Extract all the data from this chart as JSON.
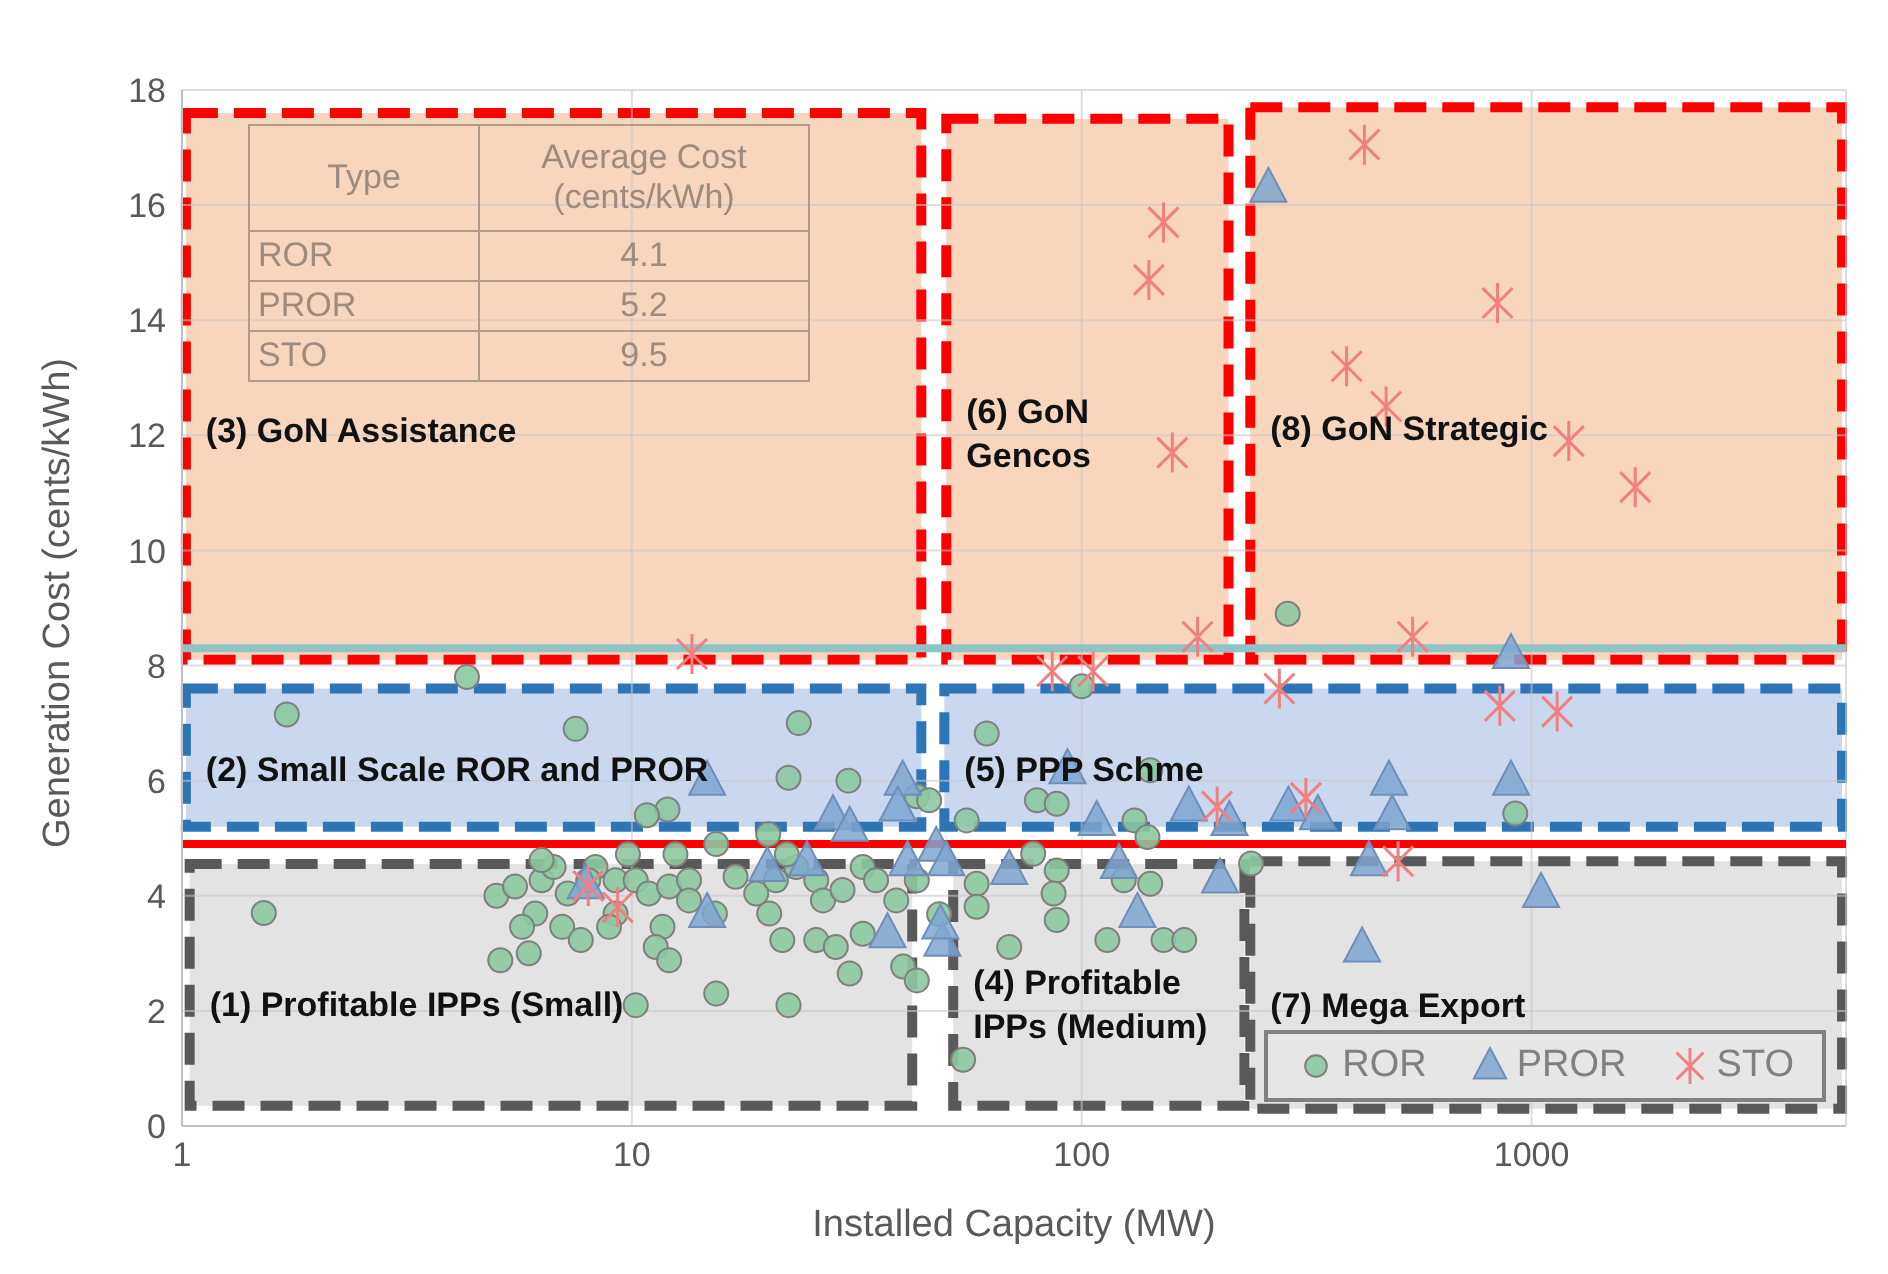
{
  "chart_data": {
    "type": "scatter",
    "xlabel": "Installed Capacity (MW)",
    "ylabel": "Generation Cost (cents/kWh)",
    "log": "x",
    "xlim": [
      1,
      5000
    ],
    "xticks": [
      1,
      10,
      100,
      1000
    ],
    "ylim": [
      0,
      18
    ],
    "yticks": [
      0,
      2,
      4,
      6,
      8,
      10,
      12,
      14,
      16,
      18
    ],
    "grid": true,
    "legend": "bottom right",
    "series": [
      {
        "name": "ROR",
        "color": "#8cc8a0",
        "marker": "circle",
        "x": [
          1.71,
          1.52,
          7.5,
          23.5,
          22.3,
          30.3,
          12.0,
          10.8,
          15.4,
          22.3,
          10.2,
          5.0,
          5.5,
          6.3,
          6.7,
          6.1,
          7.0,
          5.7,
          5.9,
          5.1,
          7.7,
          8.3,
          9.2,
          10.2,
          10.9,
          12.1,
          11.7,
          13.4,
          17.0,
          18.9,
          20.2,
          20.9,
          23.2,
          25.7,
          26.6,
          29.4,
          32.6,
          34.9,
          38.7,
          43.0,
          21.6,
          25.7,
          28.4,
          32.6,
          30.5,
          40.1,
          43.0,
          11.3,
          12.1,
          13.4,
          15.3,
          9.2,
          8.9,
          7.2,
          8.0,
          6.3,
          9.8,
          12.5,
          15.4,
          20.1,
          22.1,
          43.0,
          45.8,
          48.2,
          4.3,
          61.5,
          142,
          79.5,
          88,
          55.5,
          131,
          78,
          140,
          238,
          88,
          86.6,
          58.4,
          58.4,
          88,
          142,
          124,
          114,
          152,
          169,
          69,
          54.5,
          920,
          287,
          100
        ],
        "values": [
          7.15,
          3.7,
          6.9,
          7.0,
          6.05,
          6.0,
          5.5,
          5.4,
          2.3,
          2.1,
          2.1,
          4.0,
          4.16,
          4.27,
          4.5,
          3.69,
          3.46,
          3.46,
          3.0,
          2.88,
          3.23,
          4.5,
          4.27,
          4.27,
          4.04,
          4.16,
          3.46,
          4.27,
          4.33,
          4.04,
          3.69,
          4.27,
          4.5,
          4.27,
          3.92,
          4.1,
          4.5,
          4.27,
          3.92,
          4.27,
          3.23,
          3.23,
          3.11,
          3.34,
          2.65,
          2.77,
          2.53,
          3.11,
          2.88,
          3.92,
          3.69,
          3.69,
          3.46,
          4.04,
          4.27,
          4.62,
          4.72,
          4.72,
          4.9,
          5.07,
          4.72,
          5.73,
          5.66,
          3.68,
          7.8,
          6.82,
          6.18,
          5.66,
          5.6,
          5.31,
          5.31,
          4.73,
          5.02,
          4.56,
          4.44,
          4.04,
          4.21,
          3.81,
          3.58,
          4.21,
          4.27,
          3.23,
          3.23,
          3.23,
          3.11,
          1.15,
          5.43,
          8.9,
          7.64
        ]
      },
      {
        "name": "PROR",
        "color": "#7fa6d0",
        "marker": "triangle",
        "x": [
          260,
          900,
          14.7,
          14.7,
          7.9,
          28,
          30.5,
          40,
          37,
          39,
          20,
          47.5,
          49,
          24.5,
          41,
          93,
          69,
          108,
          121,
          133,
          173,
          288,
          335,
          482,
          490,
          435,
          900,
          1050,
          420,
          213,
          203,
          50,
          48.5
        ],
        "values": [
          16.3,
          8.2,
          6.0,
          3.7,
          4.2,
          5.4,
          5.2,
          6.0,
          3.35,
          5.55,
          4.5,
          4.85,
          3.2,
          4.6,
          4.6,
          6.2,
          4.45,
          5.3,
          4.55,
          3.7,
          5.55,
          5.55,
          5.4,
          6.0,
          5.4,
          4.6,
          6.0,
          4.05,
          3.1,
          5.3,
          4.3,
          4.6,
          3.5
        ]
      },
      {
        "name": "STO",
        "color": "#f08080",
        "marker": "cross",
        "x": [
          13.6,
          8.0,
          9.3,
          425,
          152,
          141,
          159,
          840,
          388,
          475,
          1210,
          1700,
          181,
          544,
          86,
          106,
          275,
          850,
          1140,
          200,
          315,
          505
        ],
        "values": [
          8.2,
          4.17,
          3.8,
          17.05,
          15.7,
          14.7,
          11.7,
          14.3,
          13.2,
          12.5,
          11.9,
          11.1,
          8.5,
          8.5,
          7.9,
          7.9,
          7.6,
          7.3,
          7.2,
          5.55,
          5.7,
          4.6
        ]
      }
    ],
    "ref_lines": [
      {
        "axis": "y",
        "value": 4.9,
        "color": "#ff0000"
      },
      {
        "axis": "y",
        "value": 8.3,
        "color": "#8fc3c8"
      }
    ],
    "annotations": [
      "(3) GoN Assistance",
      "(6) GoN Gencos",
      "(8) GoN Strategic",
      "(2) Small Scale ROR and PROR",
      "(5) PPP Schme",
      "(1) Profitable IPPs (Small)",
      "(4) Profitable IPPs (Medium)",
      "(7) Mega Export",
      "Type",
      "Average Cost (cents/kWh)",
      "ROR",
      "4.1",
      "PROR",
      "5.2",
      "STO",
      "9.5"
    ]
  }
}
